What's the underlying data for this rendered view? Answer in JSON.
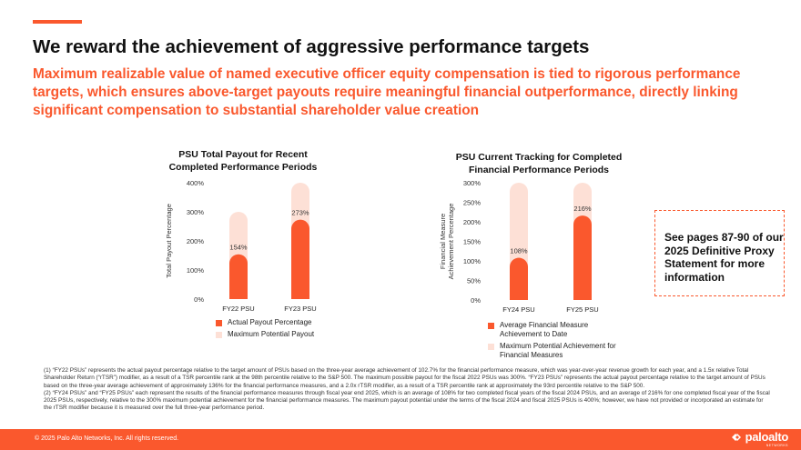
{
  "title": "We reward the achievement of aggressive performance targets",
  "subtitle": "Maximum realizable value of named executive officer equity compensation is tied to rigorous performance targets, which ensures above-target payouts require meaningful financial outperformance, directly linking significant compensation to substantial shareholder value creation",
  "colors": {
    "accent": "#fa582d",
    "max_bar": "#fde0d6"
  },
  "chart_data": [
    {
      "type": "bar",
      "title": "PSU Total Payout for Recent Completed Performance Periods",
      "ylabel": "Total Payout Percentage",
      "xlabel": "",
      "ylim": [
        0,
        400
      ],
      "yticks": [
        0,
        100,
        200,
        300,
        400
      ],
      "ytick_labels": [
        "0%",
        "100%",
        "200%",
        "300%",
        "400%"
      ],
      "categories": [
        "FY22 PSU",
        "FY23 PSU"
      ],
      "series": [
        {
          "name": "Actual Payout Percentage",
          "values": [
            154,
            273
          ],
          "labels": [
            "154%",
            "273%"
          ]
        },
        {
          "name": "Maximum Potential Payout",
          "values": [
            300,
            400
          ]
        }
      ]
    },
    {
      "type": "bar",
      "title": "PSU Current Tracking for Completed Financial Performance Periods",
      "ylabel": "Financial Measure Achievement Percentage",
      "xlabel": "",
      "ylim": [
        0,
        300
      ],
      "yticks": [
        0,
        50,
        100,
        150,
        200,
        250,
        300
      ],
      "ytick_labels": [
        "0%",
        "50%",
        "100%",
        "150%",
        "200%",
        "250%",
        "300%"
      ],
      "categories": [
        "FY24 PSU",
        "FY25 PSU"
      ],
      "series": [
        {
          "name": "Average Financial Measure Achievement to Date",
          "values": [
            108,
            216
          ],
          "labels": [
            "108%",
            "216%"
          ]
        },
        {
          "name": "Maximum Potential Achievement for Financial Measures",
          "values": [
            300,
            300
          ]
        }
      ]
    }
  ],
  "callout": "See pages 87-90 of our 2025 Definitive Proxy Statement for more information",
  "footnotes": [
    "(1) “FY22 PSUs” represents the actual payout percentage relative to the target amount of PSUs based on the three-year average achievement of 102.7% for the financial performance measure, which was year-over-year revenue growth for each year, and a 1.5x relative Total Shareholder Return (“rTSR”) modifier, as a result of a TSR percentile rank at the 98th percentile relative to the S&P 500. The maximum possible payout for the fiscal 2022 PSUs was 300%. “FY23 PSUs” represents the actual payout percentage relative to the target amount of PSUs based on the three-year average achievement of approximately 136% for the financial performance measures, and a 2.0x rTSR modifier, as a result of a TSR percentile rank at approximately the 93rd percentile relative to the S&P 500.",
    "(2) “FY24 PSUs” and “FY25 PSUs” each represent the results of the financial performance measures through fiscal year end 2025, which is an average of 108% for two completed fiscal years of the fiscal 2024 PSUs, and an average of 216% for one completed fiscal year of the fiscal 2025 PSUs, respectively, relative to the 300% maximum potential achievement for the financial performance measures. The maximum payout potential under the terms of the fiscal 2024 and fiscal 2025 PSUs is 400%; however, we have not provided or incorporated an estimate for the rTSR modifier because it is measured over the full three-year performance period."
  ],
  "footer": {
    "copyright": "© 2025 Palo Alto Networks, Inc. All rights reserved.",
    "logo_text": "paloalto",
    "logo_sub": "NETWORKS",
    "logo_icon": "paloalto-logo-icon"
  }
}
